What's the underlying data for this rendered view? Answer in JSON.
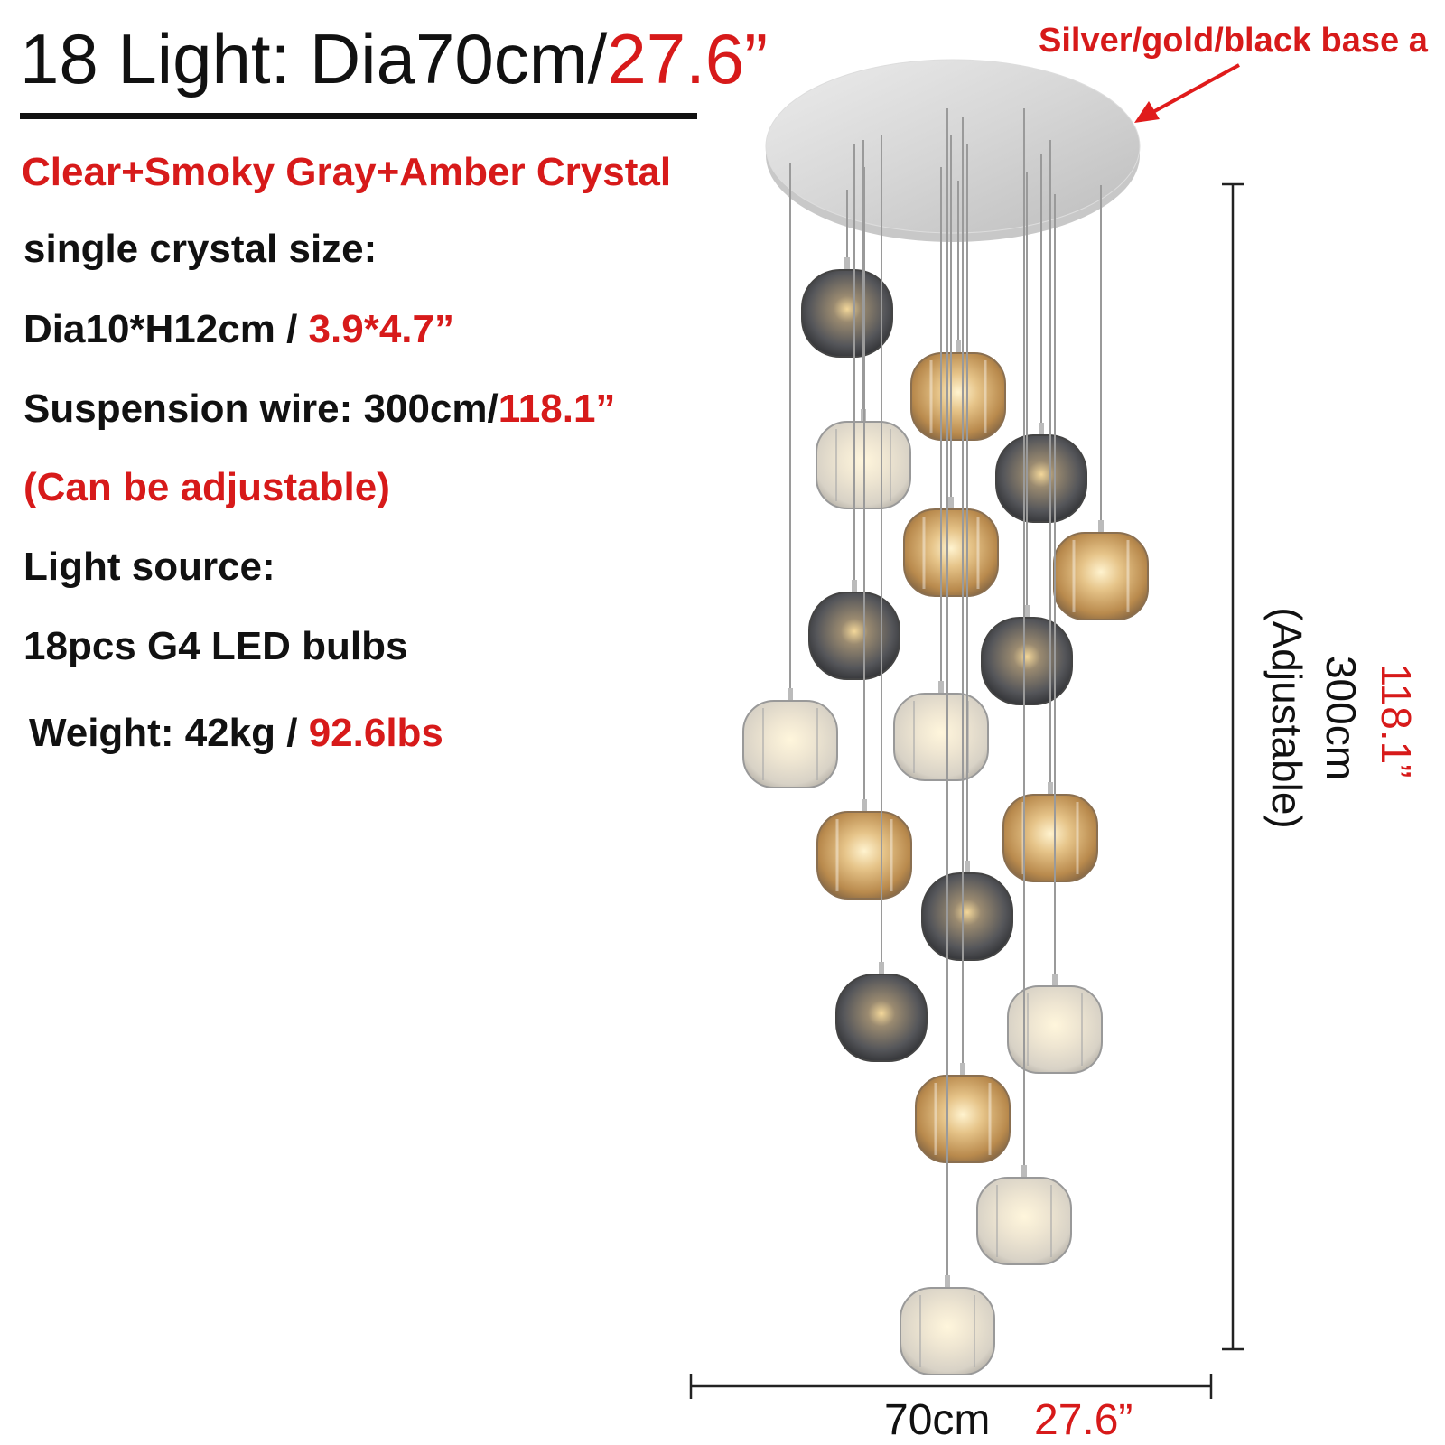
{
  "header": {
    "title": "18 Light: Dia70cm/",
    "title_inch": "27.6”"
  },
  "base_note": "Silver/gold/black base a",
  "specs": {
    "crystal": "Clear+Smoky Gray+Amber Crystal",
    "crystal_size_label": "single crystal size:",
    "crystal_size_cm": "Dia10*H12cm / ",
    "crystal_size_inch": "3.9*4.7”",
    "wire_cm": "Suspension wire: 300cm/",
    "wire_inch": "118.1”",
    "adjustable": "(Can be adjustable)",
    "light_source_label": "Light source:",
    "light_source": "18pcs G4 LED bulbs",
    "weight_kg": "Weight: 42kg / ",
    "weight_lbs": "92.6lbs"
  },
  "dimensions": {
    "height_cm": "300cm",
    "height_note": "(Adjustable)",
    "height_inch": "118.1”",
    "width_cm": "70cm",
    "width_inch": "27.6”"
  }
}
